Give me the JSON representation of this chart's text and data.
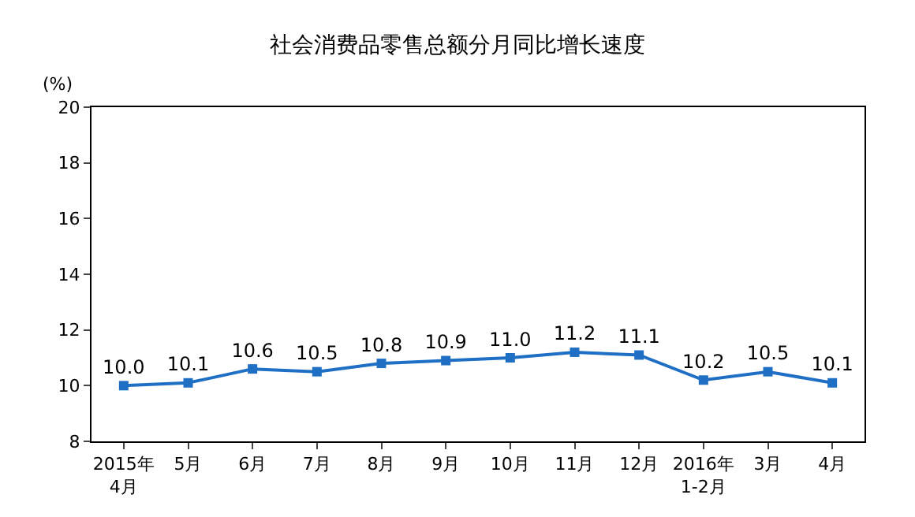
{
  "chart_data": {
    "type": "line",
    "title": "社会消费品零售总额分月同比增长速度",
    "ylabel": "(%)",
    "categories": [
      "2015年\n4月",
      "5月",
      "6月",
      "7月",
      "8月",
      "9月",
      "10月",
      "11月",
      "12月",
      "2016年\n1-2月",
      "3月",
      "4月"
    ],
    "series": [
      {
        "color": "#1f6fc5",
        "values": [
          10.0,
          10.1,
          10.6,
          10.5,
          10.8,
          10.9,
          11.0,
          11.2,
          11.1,
          10.2,
          10.5,
          10.1
        ],
        "value_labels": [
          "10.0",
          "10.1",
          "10.6",
          "10.5",
          "10.8",
          "10.9",
          "11.0",
          "11.2",
          "11.1",
          "10.2",
          "10.5",
          "10.1"
        ]
      }
    ],
    "ylim": [
      8,
      20
    ],
    "yticks": [
      8,
      10,
      12,
      14,
      16,
      18,
      20
    ],
    "legend": false,
    "marker": "square",
    "line_style": "solid"
  }
}
